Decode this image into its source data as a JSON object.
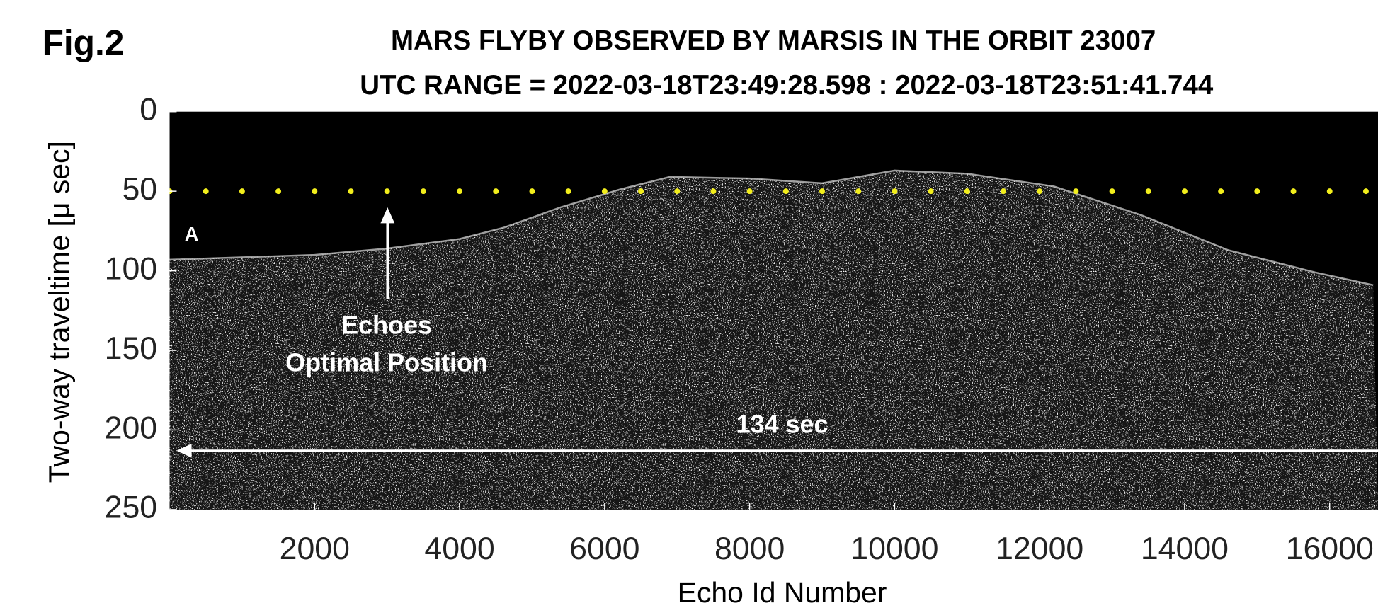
{
  "chart_data": {
    "type": "radargram",
    "figure_label": "Fig.2",
    "title": "MARS FLYBY OBSERVED BY MARSIS IN THE ORBIT 23007",
    "subtitle": "UTC RANGE = 2022-03-18T23:49:28.598 : 2022-03-18T23:51:41.744",
    "xlabel": "Echo Id Number",
    "ylabel": "Two-way traveltime [μ sec]",
    "xlim": [
      0,
      16667
    ],
    "ylim": [
      250,
      0
    ],
    "xticks": [
      2000,
      4000,
      6000,
      8000,
      10000,
      12000,
      14000,
      16000
    ],
    "yticks": [
      0,
      50,
      100,
      150,
      200,
      250
    ],
    "series": [
      {
        "name": "surface echo",
        "color": "#cfcfcf",
        "x": [
          0,
          2000,
          3000,
          4000,
          4600,
          5400,
          6200,
          6900,
          8000,
          9000,
          10000,
          11000,
          12200,
          13400,
          14600,
          15800,
          16600
        ],
        "values": [
          93,
          90,
          86,
          80,
          73,
          60,
          49,
          41,
          42,
          45,
          37,
          39,
          47,
          65,
          87,
          101,
          109
        ]
      }
    ],
    "optimal_position": {
      "value": 50,
      "color": "#f2ee1c"
    },
    "annotations": {
      "start_label": "A",
      "arrow_label": [
        "Echoes",
        "Optimal Position"
      ],
      "duration": "134 sec"
    }
  }
}
